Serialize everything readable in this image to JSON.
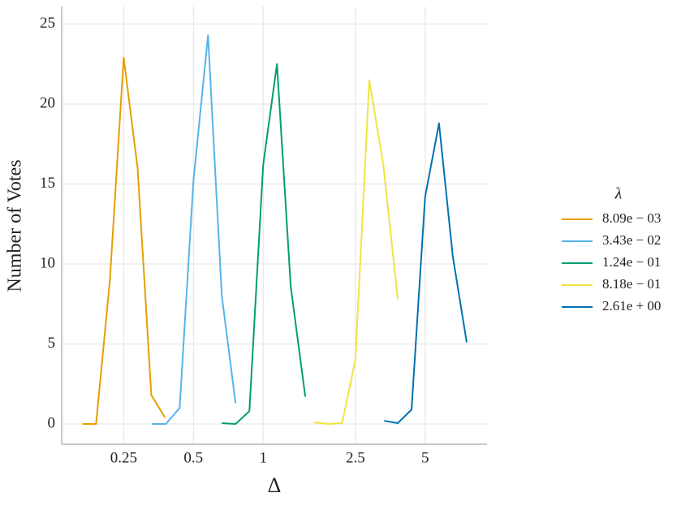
{
  "chart_data": {
    "type": "line",
    "xlabel": "Δ",
    "ylabel": "Number of Votes",
    "legend_title": "λ",
    "xscale": "log",
    "grid": true,
    "legend": "right",
    "xlim": [
      0.135,
      9.25
    ],
    "ylim": [
      -1.27,
      26.1
    ],
    "xticks": [
      0.25,
      0.5,
      1,
      2.5,
      5
    ],
    "yticks": [
      0,
      5,
      10,
      15,
      20,
      25
    ],
    "series": [
      {
        "name": "8.09e − 03",
        "color": "#e69f00",
        "x": [
          0.166,
          0.19,
          0.218,
          0.25,
          0.287,
          0.329,
          0.377
        ],
        "values": [
          0,
          0,
          9,
          22.9,
          16,
          1.8,
          0.4
        ]
      },
      {
        "name": "3.43e − 02",
        "color": "#56b4e9",
        "x": [
          0.331,
          0.38,
          0.436,
          0.5,
          0.578,
          0.663,
          0.76
        ],
        "values": [
          0,
          0,
          1,
          15.2,
          24.3,
          8,
          1.3
        ]
      },
      {
        "name": "1.24e − 01",
        "color": "#009e73",
        "x": [
          0.663,
          0.76,
          0.872,
          1,
          1.147,
          1.315,
          1.52
        ],
        "values": [
          0.05,
          0,
          0.8,
          16.2,
          22.5,
          8.6,
          1.7
        ]
      },
      {
        "name": "8.18e − 01",
        "color": "#f0e442",
        "x": [
          1.66,
          1.91,
          2.19,
          2.5,
          2.87,
          3.3,
          3.81
        ],
        "values": [
          0.1,
          0,
          0.05,
          4,
          21.5,
          16.2,
          7.8
        ]
      },
      {
        "name": "2.61e + 00",
        "color": "#0072b2",
        "x": [
          3.33,
          3.81,
          4.37,
          5,
          5.74,
          6.58,
          7.56
        ],
        "values": [
          0.2,
          0.05,
          0.9,
          14.2,
          18.8,
          10.5,
          5.1
        ]
      }
    ]
  }
}
